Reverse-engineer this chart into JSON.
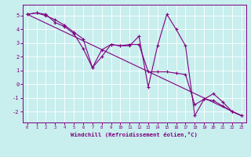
{
  "title": "",
  "xlabel": "Windchill (Refroidissement éolien,°C)",
  "ylabel": "",
  "xlim": [
    -0.5,
    23.5
  ],
  "ylim": [
    -2.8,
    5.8
  ],
  "yticks": [
    -2,
    -1,
    0,
    1,
    2,
    3,
    4,
    5
  ],
  "xticks": [
    0,
    1,
    2,
    3,
    4,
    5,
    6,
    7,
    8,
    9,
    10,
    11,
    12,
    13,
    14,
    15,
    16,
    17,
    18,
    19,
    20,
    21,
    22,
    23
  ],
  "background_color": "#c8eeee",
  "grid_color": "#ffffff",
  "line_color": "#800080",
  "line1_x": [
    0,
    1,
    2,
    3,
    4,
    5,
    6,
    7,
    8,
    9,
    10,
    11,
    12,
    13,
    14,
    15,
    16,
    17,
    18,
    19,
    20,
    21,
    22,
    23
  ],
  "line1_y": [
    5.1,
    5.2,
    5.1,
    4.5,
    4.2,
    3.7,
    2.6,
    1.2,
    2.5,
    2.9,
    2.8,
    2.8,
    3.5,
    -0.2,
    2.8,
    5.1,
    4.0,
    2.8,
    -2.3,
    -1.1,
    -0.7,
    -1.3,
    -2.0,
    -2.3
  ],
  "line2_x": [
    0,
    1,
    2,
    3,
    4,
    5,
    6,
    7,
    8,
    9,
    10,
    11,
    12,
    13,
    14,
    15,
    16,
    17,
    18,
    19,
    20,
    21,
    22,
    23
  ],
  "line2_y": [
    5.1,
    5.2,
    5.0,
    4.7,
    4.3,
    3.8,
    3.3,
    1.2,
    2.0,
    2.9,
    2.8,
    2.9,
    2.9,
    0.9,
    0.9,
    0.9,
    0.8,
    0.7,
    -1.5,
    -1.1,
    -1.2,
    -1.6,
    -2.0,
    -2.3
  ],
  "line3_x": [
    0,
    23
  ],
  "line3_y": [
    5.1,
    -2.3
  ],
  "marker": "+",
  "markersize": 3,
  "linewidth": 0.8
}
